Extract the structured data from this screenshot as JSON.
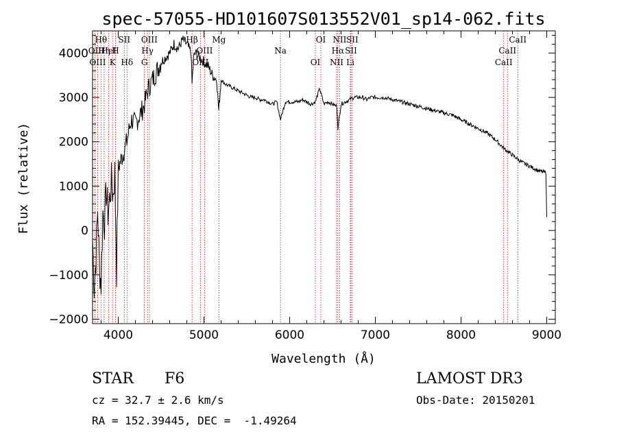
{
  "chart_data": {
    "type": "line",
    "title": "spec-57055-HD101607S013552V01_sp14-062.fits",
    "xlabel": "Wavelength (Å)",
    "ylabel": "Flux (relative)",
    "xlim": [
      3700,
      9100
    ],
    "ylim": [
      -2100,
      4500
    ],
    "x_ticks": [
      4000,
      5000,
      6000,
      7000,
      8000,
      9000
    ],
    "y_ticks": [
      -2000,
      -1000,
      0,
      1000,
      2000,
      3000,
      4000
    ],
    "grid": false,
    "legend": "none",
    "series": [
      {
        "name": "spectrum",
        "x": [
          3700,
          3720,
          3740,
          3760,
          3780,
          3800,
          3820,
          3840,
          3860,
          3880,
          3900,
          3920,
          3940,
          3960,
          3980,
          4000,
          4050,
          4100,
          4150,
          4200,
          4250,
          4300,
          4350,
          4400,
          4450,
          4500,
          4550,
          4600,
          4650,
          4700,
          4750,
          4800,
          4850,
          4861,
          4880,
          4900,
          4950,
          5000,
          5050,
          5100,
          5150,
          5172,
          5200,
          5250,
          5300,
          5350,
          5400,
          5450,
          5500,
          5550,
          5600,
          5650,
          5700,
          5750,
          5800,
          5850,
          5893,
          5950,
          6000,
          6050,
          6100,
          6150,
          6200,
          6250,
          6300,
          6350,
          6400,
          6450,
          6500,
          6550,
          6563,
          6600,
          6650,
          6700,
          6750,
          6800,
          6850,
          6900,
          6950,
          7000,
          7100,
          7200,
          7300,
          7400,
          7500,
          7600,
          7700,
          7800,
          7900,
          8000,
          8100,
          8200,
          8300,
          8400,
          8500,
          8600,
          8700,
          8800,
          8900,
          8990,
          8995,
          9000
        ],
        "y": [
          -200,
          -1300,
          -600,
          500,
          -800,
          -1200,
          400,
          200,
          900,
          400,
          700,
          1100,
          800,
          1300,
          -900,
          1400,
          1700,
          2000,
          2500,
          2400,
          2600,
          2800,
          3200,
          3400,
          3600,
          3800,
          3900,
          4000,
          4200,
          4100,
          4300,
          4200,
          4000,
          3300,
          3900,
          4000,
          3900,
          3800,
          3700,
          3500,
          3400,
          2700,
          3400,
          3300,
          3250,
          3200,
          3150,
          3100,
          3050,
          3000,
          3000,
          2950,
          2950,
          2900,
          2850,
          2900,
          2500,
          2900,
          2900,
          2900,
          2900,
          2950,
          2900,
          2850,
          2900,
          3200,
          2850,
          2900,
          2850,
          2800,
          2300,
          2850,
          2900,
          2950,
          3000,
          3000,
          3000,
          2950,
          3000,
          3000,
          3000,
          2950,
          2900,
          2850,
          2800,
          2750,
          2700,
          2650,
          2600,
          2500,
          2400,
          2300,
          2200,
          2050,
          1850,
          1700,
          1550,
          1450,
          1350,
          1300,
          800,
          300
        ]
      }
    ],
    "annotations": {
      "line_markers": [
        {
          "label": "Hθ",
          "wavelength": 3798
        },
        {
          "label": "OII",
          "wavelength": 3727
        },
        {
          "label": "OIII",
          "wavelength": 3760
        },
        {
          "label": "HeI",
          "wavelength": 3889
        },
        {
          "label": "Hη",
          "wavelength": 3835
        },
        {
          "label": "K",
          "wavelength": 3934
        },
        {
          "label": "SII",
          "wavelength": 4070
        },
        {
          "label": "H",
          "wavelength": 3968
        },
        {
          "label": "Hδ",
          "wavelength": 4102
        },
        {
          "label": "OIII",
          "wavelength": 4363
        },
        {
          "label": "Hγ",
          "wavelength": 4341
        },
        {
          "label": "G",
          "wavelength": 4305
        },
        {
          "label": "Hβ",
          "wavelength": 4861
        },
        {
          "label": "OIII",
          "wavelength": 5007
        },
        {
          "label": "OIII",
          "wavelength": 4959
        },
        {
          "label": "Mg",
          "wavelength": 5175
        },
        {
          "label": "Na",
          "wavelength": 5893
        },
        {
          "label": "OI",
          "wavelength": 6300
        },
        {
          "label": "OI",
          "wavelength": 6364
        },
        {
          "label": "Hα",
          "wavelength": 6563
        },
        {
          "label": "NII",
          "wavelength": 6548
        },
        {
          "label": "NII",
          "wavelength": 6583
        },
        {
          "label": "SII",
          "wavelength": 6716
        },
        {
          "label": "Li",
          "wavelength": 6708
        },
        {
          "label": "SII",
          "wavelength": 6731
        },
        {
          "label": "CaII",
          "wavelength": 8542
        },
        {
          "label": "CaII",
          "wavelength": 8498
        },
        {
          "label": "CaII",
          "wavelength": 8662
        }
      ]
    }
  },
  "info": {
    "object_class": "STAR",
    "subclass": "F6",
    "survey": "LAMOST DR3",
    "cz": "cz = 32.7 ± 2.6 km/s",
    "obs_date": "Obs-Date: 20150201",
    "coords": "RA = 152.39445, DEC =  -1.49264"
  },
  "colors": {
    "axis": "#000000",
    "spectrum": "#000000",
    "marker_line": "#cc0000"
  }
}
